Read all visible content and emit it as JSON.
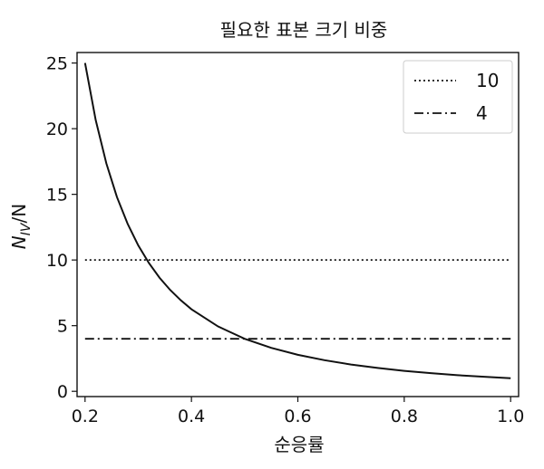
{
  "chart_data": {
    "type": "line",
    "title": "필요한 표본 크기 비중",
    "xlabel": "순응률",
    "ylabel_main": "N",
    "ylabel_sub": "IV",
    "ylabel_tail": "/N",
    "xlim": [
      0.185,
      1.015
    ],
    "ylim": [
      -0.4,
      25.8
    ],
    "xticks": [
      0.2,
      0.4,
      0.6,
      0.8,
      1.0
    ],
    "xtick_labels": [
      "0.2",
      "0.4",
      "0.6",
      "0.8",
      "1.0"
    ],
    "yticks": [
      0,
      5,
      10,
      15,
      20,
      25
    ],
    "ytick_labels": [
      "0",
      "5",
      "10",
      "15",
      "20",
      "25"
    ],
    "grid": false,
    "legend_position": "top-right",
    "series": [
      {
        "name": "",
        "style": "solid",
        "x": [
          0.2,
          0.22,
          0.24,
          0.26,
          0.28,
          0.3,
          0.32,
          0.34,
          0.36,
          0.38,
          0.4,
          0.45,
          0.5,
          0.55,
          0.6,
          0.65,
          0.7,
          0.75,
          0.8,
          0.85,
          0.9,
          0.95,
          1.0
        ],
        "y": [
          25.0,
          20.66,
          17.36,
          14.79,
          12.76,
          11.11,
          9.77,
          8.65,
          7.72,
          6.93,
          6.25,
          4.94,
          4.0,
          3.31,
          2.78,
          2.37,
          2.04,
          1.78,
          1.56,
          1.38,
          1.23,
          1.11,
          1.0
        ]
      },
      {
        "name": "10",
        "style": "dotted",
        "x": [
          0.2,
          1.0
        ],
        "y": [
          10,
          10
        ]
      },
      {
        "name": "4",
        "style": "dashdot",
        "x": [
          0.2,
          1.0
        ],
        "y": [
          4,
          4
        ]
      }
    ],
    "legend": [
      {
        "label": "10",
        "style": "dotted"
      },
      {
        "label": "4",
        "style": "dashdot"
      }
    ]
  }
}
